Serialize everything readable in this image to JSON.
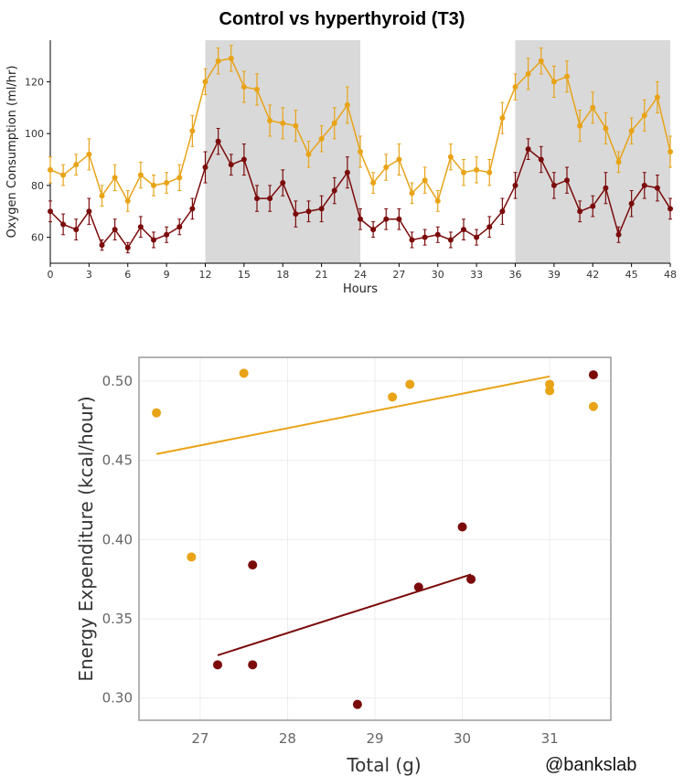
{
  "title": "Control vs hyperthyroid (T3)",
  "credit": "@bankslab",
  "colors": {
    "control": "#e8a317",
    "hyperthyroid": "#7b0b0b",
    "night": "#d9d9d9"
  },
  "chart_data": [
    {
      "type": "line",
      "title": "Control vs hyperthyroid (T3)",
      "xlabel": "Hours",
      "ylabel": "Oxygen Consumption (ml/hr)",
      "xlim": [
        0,
        48
      ],
      "ylim": [
        50,
        136
      ],
      "xticks": [
        0,
        3,
        6,
        9,
        12,
        15,
        18,
        21,
        24,
        27,
        30,
        33,
        36,
        39,
        42,
        45,
        48
      ],
      "yticks": [
        60,
        80,
        100,
        120
      ],
      "shaded_intervals": [
        [
          12,
          24
        ],
        [
          36,
          48
        ]
      ],
      "x": [
        0,
        1,
        2,
        3,
        4,
        5,
        6,
        7,
        8,
        9,
        10,
        11,
        12,
        13,
        14,
        15,
        16,
        17,
        18,
        19,
        20,
        21,
        22,
        23,
        24,
        25,
        26,
        27,
        28,
        29,
        30,
        31,
        32,
        33,
        34,
        35,
        36,
        37,
        38,
        39,
        40,
        41,
        42,
        43,
        44,
        45,
        46,
        47,
        48
      ],
      "series": [
        {
          "color": "#e8a317",
          "values": [
            86,
            84,
            88,
            92,
            76,
            83,
            74,
            84,
            80,
            81,
            83,
            101,
            120,
            128,
            129,
            118,
            117,
            105,
            104,
            103,
            92,
            98,
            104,
            111,
            93,
            81,
            87,
            90,
            77,
            82,
            74,
            91,
            85,
            86,
            85,
            106,
            118,
            123,
            128,
            120,
            122,
            103,
            110,
            102,
            89,
            101,
            107,
            114,
            93
          ],
          "errors": [
            5,
            4,
            4,
            6,
            4,
            5,
            4,
            5,
            4,
            4,
            5,
            6,
            5,
            5,
            5,
            6,
            6,
            6,
            6,
            6,
            5,
            5,
            6,
            7,
            6,
            4,
            5,
            6,
            4,
            5,
            4,
            5,
            5,
            5,
            5,
            6,
            5,
            6,
            5,
            6,
            6,
            6,
            6,
            6,
            4,
            5,
            6,
            6,
            6
          ]
        },
        {
          "color": "#7b0b0b",
          "values": [
            70,
            65,
            63,
            70,
            57,
            63,
            56,
            64,
            59,
            61,
            64,
            71,
            87,
            97,
            88,
            90,
            75,
            75,
            81,
            69,
            70,
            71,
            78,
            85,
            67,
            63,
            67,
            67,
            59,
            60,
            61,
            59,
            63,
            60,
            64,
            70,
            80,
            94,
            90,
            80,
            82,
            70,
            72,
            79,
            61,
            73,
            80,
            79,
            71
          ],
          "errors": [
            4,
            4,
            4,
            5,
            2,
            4,
            2,
            4,
            3,
            3,
            3,
            4,
            6,
            5,
            4,
            6,
            5,
            5,
            5,
            5,
            4,
            5,
            5,
            6,
            4,
            3,
            4,
            4,
            3,
            3,
            3,
            3,
            4,
            3,
            4,
            5,
            5,
            4,
            5,
            5,
            5,
            4,
            4,
            6,
            3,
            5,
            5,
            5,
            4
          ]
        }
      ]
    },
    {
      "type": "scatter",
      "xlabel": "Total (g)",
      "ylabel": "Energy Expenditure (kcal/hour)",
      "xlim": [
        26.3,
        31.7
      ],
      "ylim": [
        0.286,
        0.515
      ],
      "xticks": [
        27,
        28,
        29,
        30,
        31
      ],
      "yticks": [
        0.3,
        0.35,
        0.4,
        0.45,
        0.5
      ],
      "ytick_labels": [
        "0.30",
        "0.35",
        "0.40",
        "0.45",
        "0.50"
      ],
      "grid": true,
      "series": [
        {
          "color": "#e8a317",
          "points": [
            [
              26.5,
              0.48
            ],
            [
              26.9,
              0.389
            ],
            [
              27.5,
              0.505
            ],
            [
              29.2,
              0.49
            ],
            [
              29.4,
              0.498
            ],
            [
              31.0,
              0.498
            ],
            [
              31.0,
              0.494
            ],
            [
              31.5,
              0.484
            ]
          ],
          "trendline": [
            [
              26.5,
              0.454
            ],
            [
              31.0,
              0.503
            ]
          ]
        },
        {
          "color": "#7b0b0b",
          "points": [
            [
              27.2,
              0.321
            ],
            [
              27.6,
              0.384
            ],
            [
              27.6,
              0.321
            ],
            [
              28.8,
              0.296
            ],
            [
              29.5,
              0.37
            ],
            [
              30.0,
              0.408
            ],
            [
              30.1,
              0.375
            ],
            [
              31.5,
              0.504
            ]
          ],
          "trendline": [
            [
              27.2,
              0.327
            ],
            [
              30.1,
              0.378
            ]
          ]
        }
      ]
    }
  ]
}
